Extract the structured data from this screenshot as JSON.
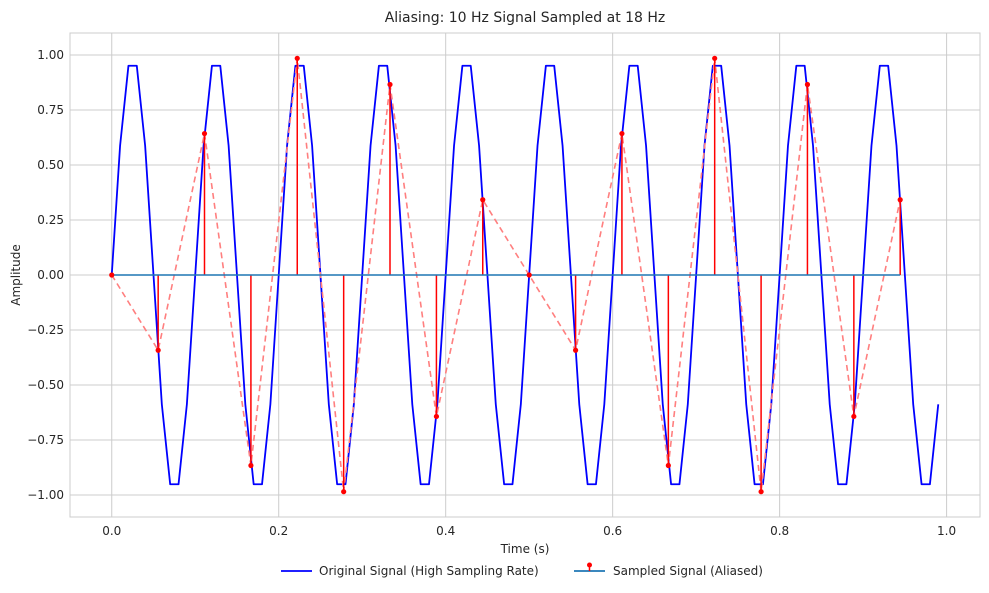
{
  "chart_data": {
    "type": "line",
    "title": "Aliasing: 10 Hz Signal Sampled at 18 Hz",
    "xlabel": "Time (s)",
    "ylabel": "Amplitude",
    "xlim": [
      -0.05,
      1.04
    ],
    "ylim": [
      -1.1,
      1.1
    ],
    "xticks": [
      0.0,
      0.2,
      0.4,
      0.6,
      0.8,
      1.0
    ],
    "xtick_labels": [
      "0.0",
      "0.2",
      "0.4",
      "0.6",
      "0.8",
      "1.0"
    ],
    "yticks": [
      -1.0,
      -0.75,
      -0.5,
      -0.25,
      0.0,
      0.25,
      0.5,
      0.75,
      1.0
    ],
    "ytick_labels": [
      "−1.00",
      "−0.75",
      "−0.50",
      "−0.25",
      "0.00",
      "0.25",
      "0.50",
      "0.75",
      "1.00"
    ],
    "grid": true,
    "legend_position": "bottom-center",
    "original": {
      "name": "Original Signal (High Sampling Rate)",
      "color": "#0000ff",
      "frequency_hz": 10,
      "t_start": 0.0,
      "t_end": 0.99,
      "dt": 0.01
    },
    "sampled": {
      "name": "Sampled Signal (Aliased)",
      "color": "#ff0000",
      "baseline_color": "#1f77b4",
      "dashed_color": "#ff7f7f",
      "x": [
        0.0,
        0.0556,
        0.1111,
        0.1667,
        0.2222,
        0.2778,
        0.3333,
        0.3889,
        0.4444,
        0.5,
        0.5556,
        0.6111,
        0.6667,
        0.7222,
        0.7778,
        0.8333,
        0.8889,
        0.9444
      ],
      "y": [
        0.0,
        -0.342,
        0.643,
        -0.866,
        0.985,
        -0.985,
        0.866,
        -0.643,
        0.342,
        0.0,
        -0.342,
        0.643,
        -0.866,
        0.985,
        -0.985,
        0.866,
        -0.643,
        0.342
      ]
    }
  }
}
